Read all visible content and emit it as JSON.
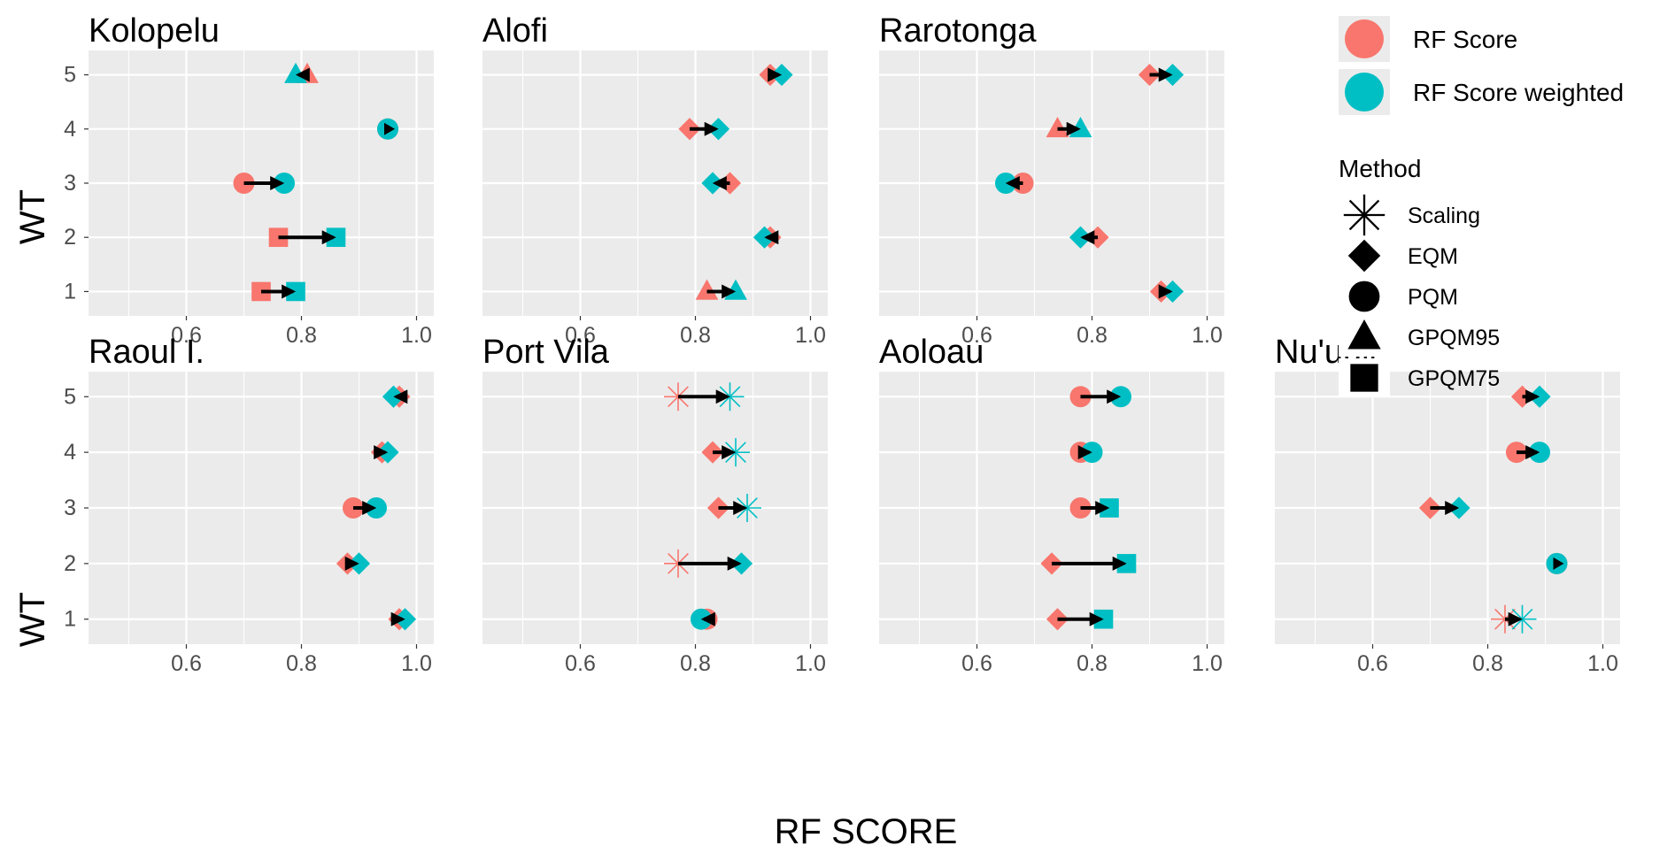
{
  "chart_data": {
    "type": "scatter",
    "xlabel": "RF SCORE",
    "ylabel": "WT",
    "xlim": [
      0.43,
      1.03
    ],
    "ylim": [
      0.55,
      5.45
    ],
    "x_ticks": [
      "0.6",
      "0.8",
      "1.0"
    ],
    "x_tick_values": [
      0.6,
      0.8,
      1.0
    ],
    "y_ticks": [
      "1",
      "2",
      "3",
      "4",
      "5"
    ],
    "grid": true,
    "legend_placement": "right",
    "legend": {
      "color_items": [
        {
          "label": "RF Score",
          "color": "#F8766D"
        },
        {
          "label": "RF Score weighted",
          "color": "#00BFC4"
        }
      ],
      "shape_title": "Method",
      "shape_items": [
        {
          "label": "Scaling",
          "shape": "asterisk"
        },
        {
          "label": "EQM",
          "shape": "diamond"
        },
        {
          "label": "PQM",
          "shape": "circle"
        },
        {
          "label": "GPQM95",
          "shape": "triangle"
        },
        {
          "label": "GPQM75",
          "shape": "square"
        }
      ]
    },
    "panels": [
      {
        "title": "Kolopelu",
        "points": [
          {
            "wt": 5,
            "rf": 0.81,
            "rfw": 0.79,
            "method": "GPQM95"
          },
          {
            "wt": 4,
            "rf": 0.95,
            "rfw": 0.95,
            "method": "PQM"
          },
          {
            "wt": 3,
            "rf": 0.7,
            "rfw": 0.77,
            "method": "PQM"
          },
          {
            "wt": 2,
            "rf": 0.76,
            "rfw": 0.86,
            "method": "GPQM75"
          },
          {
            "wt": 1,
            "rf": 0.73,
            "rfw": 0.79,
            "method": "GPQM75"
          }
        ]
      },
      {
        "title": "Alofi",
        "points": [
          {
            "wt": 5,
            "rf": 0.93,
            "rfw": 0.95,
            "method": "EQM"
          },
          {
            "wt": 4,
            "rf": 0.79,
            "rfw": 0.84,
            "method": "EQM"
          },
          {
            "wt": 3,
            "rf": 0.86,
            "rfw": 0.83,
            "method": "EQM"
          },
          {
            "wt": 2,
            "rf": 0.93,
            "rfw": 0.92,
            "method": "EQM"
          },
          {
            "wt": 1,
            "rf": 0.82,
            "rfw": 0.87,
            "method": "GPQM95"
          }
        ]
      },
      {
        "title": "Rarotonga",
        "points": [
          {
            "wt": 5,
            "rf": 0.9,
            "rfw": 0.94,
            "method": "EQM"
          },
          {
            "wt": 4,
            "rf": 0.74,
            "rfw": 0.78,
            "method": "GPQM95"
          },
          {
            "wt": 3,
            "rf": 0.68,
            "rfw": 0.65,
            "method": "PQM"
          },
          {
            "wt": 2,
            "rf": 0.81,
            "rfw": 0.78,
            "method": "EQM"
          },
          {
            "wt": 1,
            "rf": 0.92,
            "rfw": 0.94,
            "method": "EQM"
          }
        ]
      },
      {
        "title": "Raoul I.",
        "points": [
          {
            "wt": 5,
            "rf": 0.97,
            "rfw": 0.96,
            "method": "EQM"
          },
          {
            "wt": 4,
            "rf": 0.94,
            "rfw": 0.95,
            "method": "EQM"
          },
          {
            "wt": 3,
            "rf": 0.89,
            "rfw": 0.93,
            "method": "PQM"
          },
          {
            "wt": 2,
            "rf": 0.88,
            "rfw": 0.9,
            "method": "EQM"
          },
          {
            "wt": 1,
            "rf": 0.97,
            "rfw": 0.98,
            "method": "EQM"
          }
        ]
      },
      {
        "title": "Port Vila",
        "points": [
          {
            "wt": 5,
            "rf": 0.77,
            "rfw": 0.86,
            "method": "Scaling"
          },
          {
            "wt": 4,
            "rf": 0.83,
            "rfw": 0.87,
            "method": "EQM",
            "method_w": "Scaling"
          },
          {
            "wt": 3,
            "rf": 0.84,
            "rfw": 0.89,
            "method": "EQM",
            "method_w": "Scaling"
          },
          {
            "wt": 2,
            "rf": 0.77,
            "rfw": 0.88,
            "method": "Scaling",
            "method_w": "EQM"
          },
          {
            "wt": 1,
            "rf": 0.82,
            "rfw": 0.81,
            "method": "PQM"
          }
        ]
      },
      {
        "title": "Aoloau",
        "points": [
          {
            "wt": 5,
            "rf": 0.78,
            "rfw": 0.85,
            "method": "PQM"
          },
          {
            "wt": 4,
            "rf": 0.78,
            "rfw": 0.8,
            "method": "PQM"
          },
          {
            "wt": 3,
            "rf": 0.78,
            "rfw": 0.83,
            "method": "PQM",
            "method_w": "GPQM75"
          },
          {
            "wt": 2,
            "rf": 0.73,
            "rfw": 0.86,
            "method": "EQM",
            "method_w": "GPQM75"
          },
          {
            "wt": 1,
            "rf": 0.74,
            "rfw": 0.82,
            "method": "EQM",
            "method_w": "GPQM75"
          }
        ]
      },
      {
        "title": "Nu'uuli",
        "points": [
          {
            "wt": 5,
            "rf": 0.86,
            "rfw": 0.89,
            "method": "EQM"
          },
          {
            "wt": 4,
            "rf": 0.85,
            "rfw": 0.89,
            "method": "PQM"
          },
          {
            "wt": 3,
            "rf": 0.7,
            "rfw": 0.75,
            "method": "EQM"
          },
          {
            "wt": 2,
            "rf": 0.92,
            "rfw": 0.92,
            "method": "PQM"
          },
          {
            "wt": 1,
            "rf": 0.83,
            "rfw": 0.86,
            "method": "Scaling"
          }
        ]
      }
    ]
  }
}
